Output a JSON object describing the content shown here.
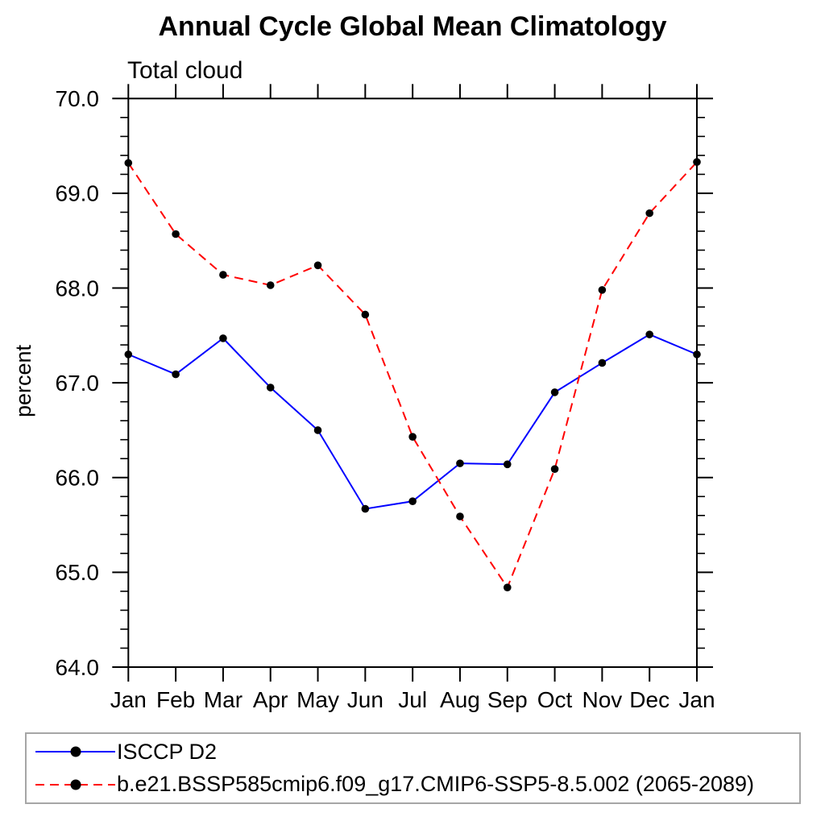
{
  "title": "Annual Cycle Global Mean Climatology",
  "subtitle": "Total cloud",
  "ylabel": "percent",
  "chart_data": {
    "type": "line",
    "x": [
      "Jan",
      "Feb",
      "Mar",
      "Apr",
      "May",
      "Jun",
      "Jul",
      "Aug",
      "Sep",
      "Oct",
      "Nov",
      "Dec",
      "Jan"
    ],
    "ylim": [
      64.0,
      70.0
    ],
    "ytick_labels": [
      "64.0",
      "65.0",
      "66.0",
      "67.0",
      "68.0",
      "69.0",
      "70.0"
    ],
    "ytick_minor_step": 0.2,
    "grid": false,
    "frame": "box-with-outward-ticks",
    "legend_position": "bottom-left-box",
    "marker_color": "#000000",
    "axis_color": "#000000",
    "series": [
      {
        "name": "ISCCP D2",
        "color": "#0000ff",
        "style": "solid",
        "marker": "filled-circle",
        "values": [
          67.3,
          67.09,
          67.47,
          66.95,
          66.5,
          65.67,
          65.75,
          66.15,
          66.14,
          66.9,
          67.21,
          67.51,
          67.3
        ]
      },
      {
        "name": "b.e21.BSSP585cmip6.f09_g17.CMIP6-SSP5-8.5.002 (2065-2089)",
        "color": "#ff0000",
        "style": "dashed",
        "marker": "filled-circle",
        "values": [
          69.32,
          68.57,
          68.14,
          68.03,
          68.24,
          67.72,
          66.43,
          65.59,
          64.84,
          66.09,
          67.98,
          68.79,
          69.33
        ]
      }
    ]
  }
}
